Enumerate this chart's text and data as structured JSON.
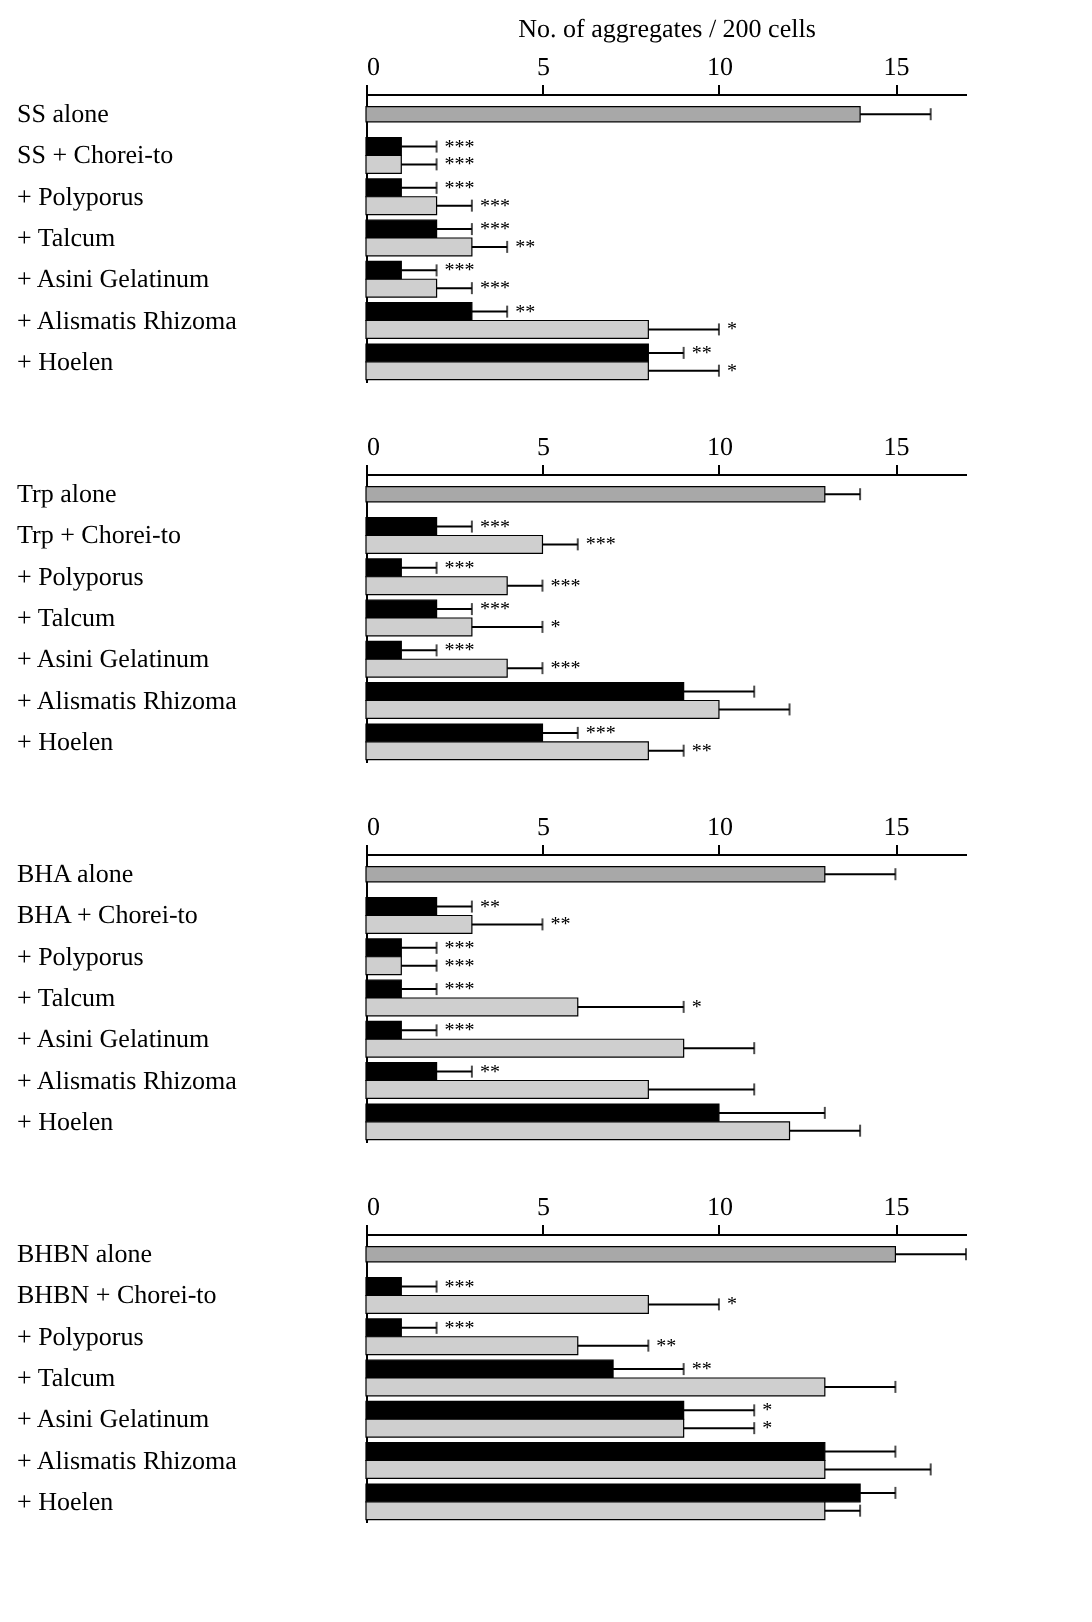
{
  "chart_data": [
    {
      "type": "bar",
      "orientation": "horizontal",
      "xlabel": "No. of aggregates / 200 cells",
      "xlim": [
        0,
        17
      ],
      "xticks": [
        0,
        5,
        10,
        15
      ],
      "grid": false,
      "categories": [
        "SS alone",
        "SS + Chorei-to",
        "+ Polyporus",
        "+ Talcum",
        "+ Asini Gelatinum",
        "+ Alismatis Rhizoma",
        "+ Hoelen"
      ],
      "series": [
        {
          "color": "#a8a8a8",
          "values": [
            14,
            null,
            null,
            null,
            null,
            null,
            null
          ],
          "errors": [
            [
              14,
              16
            ],
            null,
            null,
            null,
            null,
            null,
            null
          ]
        },
        {
          "color": "#000000",
          "values": [
            null,
            1,
            1,
            2,
            1,
            3,
            8
          ],
          "errors": [
            null,
            [
              1,
              2
            ],
            [
              1,
              2
            ],
            [
              2,
              3
            ],
            [
              1,
              2
            ],
            [
              3,
              4
            ],
            [
              8,
              9
            ]
          ]
        },
        {
          "color": "#cfcfcf",
          "values": [
            null,
            1,
            2,
            3,
            2,
            8,
            8
          ],
          "errors": [
            null,
            [
              1,
              2
            ],
            [
              2,
              3
            ],
            [
              3,
              4
            ],
            [
              2,
              3
            ],
            [
              8,
              10
            ],
            [
              8,
              10
            ]
          ]
        }
      ],
      "annotations": [
        {
          "text": "***",
          "x": 2,
          "y": "SS + Chorei-to"
        },
        {
          "text": "***",
          "x": 2,
          "y": "SS + Chorei-to"
        },
        {
          "text": "***",
          "x": 2,
          "y": "+ Polyporus"
        },
        {
          "text": "***",
          "x": 3,
          "y": "+ Polyporus"
        },
        {
          "text": "***",
          "x": 3,
          "y": "+ Talcum"
        },
        {
          "text": "**",
          "x": 4,
          "y": "+ Talcum"
        },
        {
          "text": "***",
          "x": 2,
          "y": "+ Asini Gelatinum"
        },
        {
          "text": "***",
          "x": 3,
          "y": "+ Asini Gelatinum"
        },
        {
          "text": "**",
          "x": 4,
          "y": "+ Alismatis Rhizoma"
        },
        {
          "text": "*",
          "x": 10,
          "y": "+ Alismatis Rhizoma"
        },
        {
          "text": "**",
          "x": 9,
          "y": "+ Hoelen"
        },
        {
          "text": "*",
          "x": 10,
          "y": "+ Hoelen"
        }
      ]
    },
    {
      "type": "bar",
      "orientation": "horizontal",
      "xlim": [
        0,
        17
      ],
      "xticks": [
        0,
        5,
        10,
        15
      ],
      "grid": false,
      "categories": [
        "Trp alone",
        "Trp + Chorei-to",
        "+ Polyporus",
        "+ Talcum",
        "+ Asini Gelatinum",
        "+ Alismatis Rhizoma",
        "+ Hoelen"
      ],
      "series": [
        {
          "color": "#a8a8a8",
          "values": [
            13,
            null,
            null,
            null,
            null,
            null,
            null
          ],
          "errors": [
            [
              13,
              14
            ],
            null,
            null,
            null,
            null,
            null,
            null
          ]
        },
        {
          "color": "#000000",
          "values": [
            null,
            2,
            1,
            2,
            1,
            9,
            5
          ],
          "errors": [
            null,
            [
              2,
              3
            ],
            [
              1,
              2
            ],
            [
              2,
              3
            ],
            [
              1,
              2
            ],
            [
              9,
              11
            ],
            [
              5,
              6
            ]
          ]
        },
        {
          "color": "#cfcfcf",
          "values": [
            null,
            5,
            4,
            3,
            4,
            10,
            8
          ],
          "errors": [
            null,
            [
              5,
              6
            ],
            [
              4,
              5
            ],
            [
              3,
              5
            ],
            [
              4,
              5
            ],
            [
              10,
              12
            ],
            [
              8,
              9
            ]
          ]
        }
      ],
      "annotations": [
        {
          "text": "***",
          "x": 3,
          "y": "Trp + Chorei-to"
        },
        {
          "text": "***",
          "x": 6,
          "y": "Trp + Chorei-to"
        },
        {
          "text": "***",
          "x": 2,
          "y": "+ Polyporus"
        },
        {
          "text": "***",
          "x": 5,
          "y": "+ Polyporus"
        },
        {
          "text": "***",
          "x": 3,
          "y": "+ Talcum"
        },
        {
          "text": "*",
          "x": 5,
          "y": "+ Talcum"
        },
        {
          "text": "***",
          "x": 2,
          "y": "+ Asini Gelatinum"
        },
        {
          "text": "***",
          "x": 5,
          "y": "+ Asini Gelatinum"
        },
        {
          "text": "***",
          "x": 6,
          "y": "+ Hoelen"
        },
        {
          "text": "**",
          "x": 9,
          "y": "+ Hoelen"
        }
      ]
    },
    {
      "type": "bar",
      "orientation": "horizontal",
      "xlim": [
        0,
        17
      ],
      "xticks": [
        0,
        5,
        10,
        15
      ],
      "grid": false,
      "categories": [
        "BHA alone",
        "BHA + Chorei-to",
        "+ Polyporus",
        "+ Talcum",
        "+ Asini Gelatinum",
        "+ Alismatis Rhizoma",
        "+ Hoelen"
      ],
      "series": [
        {
          "color": "#a8a8a8",
          "values": [
            13,
            null,
            null,
            null,
            null,
            null,
            null
          ],
          "errors": [
            [
              13,
              15
            ],
            null,
            null,
            null,
            null,
            null,
            null
          ]
        },
        {
          "color": "#000000",
          "values": [
            null,
            2,
            1,
            1,
            1,
            2,
            10
          ],
          "errors": [
            null,
            [
              2,
              3
            ],
            [
              1,
              2
            ],
            [
              1,
              2
            ],
            [
              1,
              2
            ],
            [
              2,
              3
            ],
            [
              10,
              13
            ]
          ]
        },
        {
          "color": "#cfcfcf",
          "values": [
            null,
            3,
            1,
            6,
            9,
            8,
            12
          ],
          "errors": [
            null,
            [
              3,
              5
            ],
            [
              1,
              2
            ],
            [
              6,
              9
            ],
            [
              9,
              11
            ],
            [
              8,
              11
            ],
            [
              12,
              14
            ]
          ]
        }
      ],
      "annotations": [
        {
          "text": "**",
          "x": 3,
          "y": "BHA + Chorei-to"
        },
        {
          "text": "**",
          "x": 5,
          "y": "BHA + Chorei-to"
        },
        {
          "text": "***",
          "x": 2,
          "y": "+ Polyporus"
        },
        {
          "text": "***",
          "x": 2,
          "y": "+ Polyporus"
        },
        {
          "text": "***",
          "x": 2,
          "y": "+ Talcum"
        },
        {
          "text": "*",
          "x": 9,
          "y": "+ Talcum"
        },
        {
          "text": "***",
          "x": 2,
          "y": "+ Asini Gelatinum"
        },
        {
          "text": "**",
          "x": 3,
          "y": "+ Alismatis Rhizoma"
        }
      ]
    },
    {
      "type": "bar",
      "orientation": "horizontal",
      "xlim": [
        0,
        17
      ],
      "xticks": [
        0,
        5,
        10,
        15
      ],
      "grid": false,
      "categories": [
        "BHBN alone",
        "BHBN + Chorei-to",
        "+ Polyporus",
        "+ Talcum",
        "+ Asini Gelatinum",
        "+ Alismatis Rhizoma",
        "+ Hoelen"
      ],
      "series": [
        {
          "color": "#a8a8a8",
          "values": [
            15,
            null,
            null,
            null,
            null,
            null,
            null
          ],
          "errors": [
            [
              15,
              17
            ],
            null,
            null,
            null,
            null,
            null,
            null
          ]
        },
        {
          "color": "#000000",
          "values": [
            null,
            1,
            1,
            7,
            9,
            13,
            14
          ],
          "errors": [
            null,
            [
              1,
              2
            ],
            [
              1,
              2
            ],
            [
              7,
              9
            ],
            [
              9,
              11
            ],
            [
              13,
              15
            ],
            [
              14,
              15
            ]
          ]
        },
        {
          "color": "#cfcfcf",
          "values": [
            null,
            8,
            6,
            13,
            9,
            13,
            13
          ],
          "errors": [
            null,
            [
              8,
              10
            ],
            [
              6,
              8
            ],
            [
              13,
              15
            ],
            [
              9,
              11
            ],
            [
              13,
              16
            ],
            [
              13,
              14
            ]
          ]
        }
      ],
      "annotations": [
        {
          "text": "***",
          "x": 2,
          "y": "BHBN + Chorei-to"
        },
        {
          "text": "*",
          "x": 10,
          "y": "BHBN + Chorei-to"
        },
        {
          "text": "***",
          "x": 2,
          "y": "+ Polyporus"
        },
        {
          "text": "**",
          "x": 8,
          "y": "+ Polyporus"
        },
        {
          "text": "**",
          "x": 9,
          "y": "+ Talcum"
        },
        {
          "text": "*",
          "x": 11,
          "y": "+ Asini Gelatinum"
        },
        {
          "text": "*",
          "x": 11,
          "y": "+ Asini Gelatinum"
        }
      ]
    }
  ]
}
